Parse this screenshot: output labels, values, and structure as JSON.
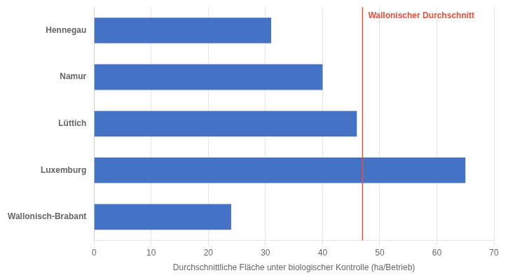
{
  "chart_data": {
    "type": "bar",
    "orientation": "horizontal",
    "categories": [
      "Wallonisch-Brabant",
      "Luxemburg",
      "Lüttich",
      "Namur",
      "Hennegau"
    ],
    "values": [
      24,
      65,
      46,
      40,
      31
    ],
    "color": "#4472C4",
    "xlabel": "Durchschnittliche Fläche unter biologischer Kontrolle (ha/Betrieb)",
    "xlim": [
      0,
      70
    ],
    "xticks": [
      0,
      10,
      20,
      30,
      40,
      50,
      60,
      70
    ],
    "grid": true,
    "annotations": [
      {
        "type": "vline",
        "x": 47,
        "label": "Wallonischer Durchschnitt",
        "color": "#E8503A"
      }
    ]
  }
}
